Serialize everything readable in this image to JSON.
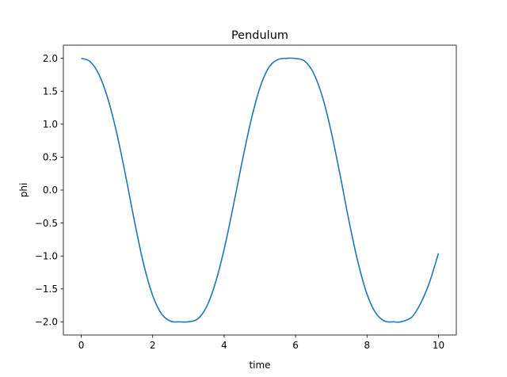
{
  "chart_data": {
    "type": "line",
    "title": "Pendulum",
    "xlabel": "time",
    "ylabel": "phi",
    "xlim": [
      -0.5,
      10.5
    ],
    "ylim": [
      -2.2,
      2.2
    ],
    "xticks": [
      0,
      2,
      4,
      6,
      8,
      10
    ],
    "xtick_labels": [
      "0",
      "2",
      "4",
      "6",
      "8",
      "10"
    ],
    "yticks": [
      -2.0,
      -1.5,
      -1.0,
      -0.5,
      0.0,
      0.5,
      1.0,
      1.5,
      2.0
    ],
    "ytick_labels": [
      "−2.0",
      "−1.5",
      "−1.0",
      "−0.5",
      "0.0",
      "0.5",
      "1.0",
      "1.5",
      "2.0"
    ],
    "grid": false,
    "series": [
      {
        "color": "#1f77b4",
        "x": [
          0,
          0.25,
          0.5,
          0.75,
          1.0,
          1.25,
          1.5,
          1.75,
          2.0,
          2.25,
          2.5,
          2.75,
          2.98,
          3.25,
          3.5,
          3.75,
          4.0,
          4.25,
          4.5,
          4.75,
          5.0,
          5.25,
          5.5,
          5.75,
          5.96,
          6.25,
          6.5,
          6.75,
          7.0,
          7.25,
          7.5,
          7.75,
          8.0,
          8.25,
          8.5,
          8.75,
          8.94,
          9.25,
          9.5,
          9.75,
          10.0
        ],
        "y": [
          2.0,
          1.95,
          1.75,
          1.38,
          0.85,
          0.2,
          -0.5,
          -1.13,
          -1.6,
          -1.88,
          -1.99,
          -2.0,
          -2.0,
          -1.96,
          -1.78,
          -1.42,
          -0.9,
          -0.26,
          0.42,
          1.05,
          1.55,
          1.86,
          1.98,
          2.0,
          2.0,
          1.96,
          1.78,
          1.42,
          0.88,
          0.22,
          -0.48,
          -1.1,
          -1.58,
          -1.87,
          -1.99,
          -2.0,
          -2.0,
          -1.93,
          -1.72,
          -1.4,
          -0.96
        ]
      }
    ]
  }
}
